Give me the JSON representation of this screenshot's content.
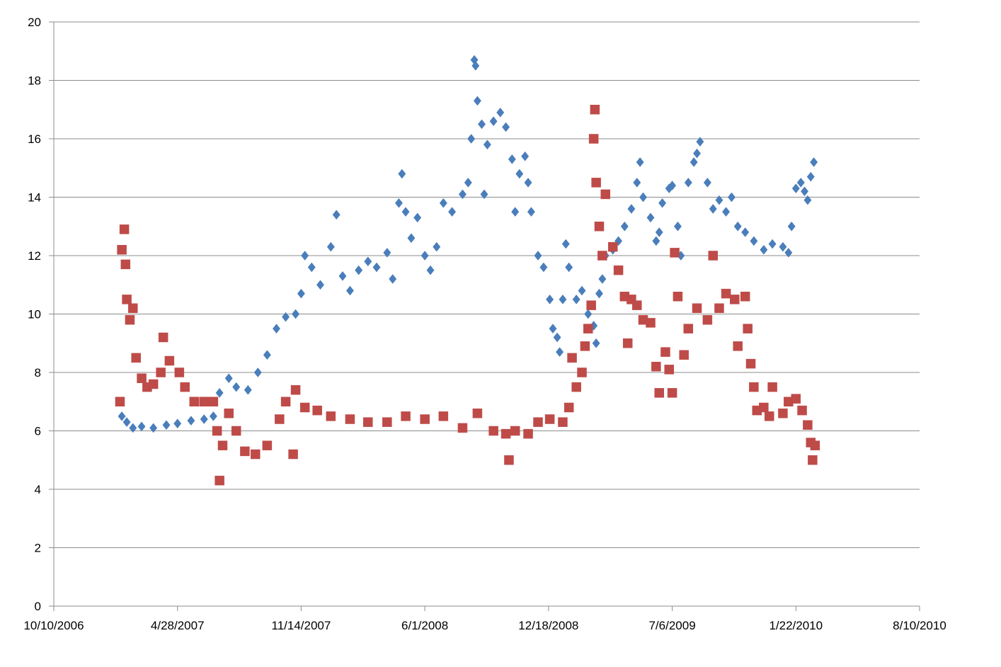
{
  "chart_data": {
    "type": "scatter",
    "title": "",
    "xlabel": "",
    "ylabel": "",
    "xlim": [
      "2006-10-10",
      "2010-08-10"
    ],
    "ylim": [
      0,
      20
    ],
    "grid": "horizontal",
    "legend": "none",
    "x_tick_labels": [
      "10/10/2006",
      "4/28/2007",
      "11/14/2007",
      "6/1/2008",
      "12/18/2008",
      "7/6/2009",
      "1/22/2010",
      "8/10/2010"
    ],
    "y_tick_labels": [
      "0",
      "2",
      "4",
      "6",
      "8",
      "10",
      "12",
      "14",
      "16",
      "18",
      "20"
    ],
    "series": [
      {
        "marker": "diamond",
        "color": "#4a7ebb",
        "points": [
          [
            "2007-01-28",
            6.5
          ],
          [
            "2007-02-05",
            6.3
          ],
          [
            "2007-02-15",
            6.1
          ],
          [
            "2007-03-01",
            6.15
          ],
          [
            "2007-03-20",
            6.1
          ],
          [
            "2007-04-10",
            6.2
          ],
          [
            "2007-04-28",
            6.25
          ],
          [
            "2007-05-20",
            6.35
          ],
          [
            "2007-06-10",
            6.4
          ],
          [
            "2007-06-25",
            6.5
          ],
          [
            "2007-07-05",
            7.3
          ],
          [
            "2007-07-20",
            7.8
          ],
          [
            "2007-08-01",
            7.5
          ],
          [
            "2007-08-20",
            7.4
          ],
          [
            "2007-09-05",
            8.0
          ],
          [
            "2007-09-20",
            8.6
          ],
          [
            "2007-10-05",
            9.5
          ],
          [
            "2007-10-20",
            9.9
          ],
          [
            "2007-11-05",
            10.0
          ],
          [
            "2007-11-14",
            10.7
          ],
          [
            "2007-11-20",
            12.0
          ],
          [
            "2007-12-01",
            11.6
          ],
          [
            "2007-12-15",
            11.0
          ],
          [
            "2008-01-01",
            12.3
          ],
          [
            "2008-01-10",
            13.4
          ],
          [
            "2008-01-20",
            11.3
          ],
          [
            "2008-02-01",
            10.8
          ],
          [
            "2008-02-15",
            11.5
          ],
          [
            "2008-03-01",
            11.8
          ],
          [
            "2008-03-15",
            11.6
          ],
          [
            "2008-04-01",
            12.1
          ],
          [
            "2008-04-10",
            11.2
          ],
          [
            "2008-04-20",
            13.8
          ],
          [
            "2008-04-25",
            14.8
          ],
          [
            "2008-05-01",
            13.5
          ],
          [
            "2008-05-10",
            12.6
          ],
          [
            "2008-05-20",
            13.3
          ],
          [
            "2008-06-01",
            12.0
          ],
          [
            "2008-06-10",
            11.5
          ],
          [
            "2008-06-20",
            12.3
          ],
          [
            "2008-07-01",
            13.8
          ],
          [
            "2008-07-15",
            13.5
          ],
          [
            "2008-08-01",
            14.1
          ],
          [
            "2008-08-10",
            14.5
          ],
          [
            "2008-08-15",
            16.0
          ],
          [
            "2008-08-20",
            18.7
          ],
          [
            "2008-08-22",
            18.5
          ],
          [
            "2008-08-25",
            17.3
          ],
          [
            "2008-09-01",
            16.5
          ],
          [
            "2008-09-05",
            14.1
          ],
          [
            "2008-09-10",
            15.8
          ],
          [
            "2008-09-20",
            16.6
          ],
          [
            "2008-10-01",
            16.9
          ],
          [
            "2008-10-10",
            16.4
          ],
          [
            "2008-10-20",
            15.3
          ],
          [
            "2008-10-25",
            13.5
          ],
          [
            "2008-11-01",
            14.8
          ],
          [
            "2008-11-10",
            15.4
          ],
          [
            "2008-11-15",
            14.5
          ],
          [
            "2008-11-20",
            13.5
          ],
          [
            "2008-12-01",
            12.0
          ],
          [
            "2008-12-10",
            11.6
          ],
          [
            "2008-12-20",
            10.5
          ],
          [
            "2008-12-25",
            9.5
          ],
          [
            "2009-01-01",
            9.2
          ],
          [
            "2009-01-05",
            8.7
          ],
          [
            "2009-01-10",
            10.5
          ],
          [
            "2009-01-15",
            12.4
          ],
          [
            "2009-01-20",
            11.6
          ],
          [
            "2009-02-01",
            10.5
          ],
          [
            "2009-02-10",
            10.8
          ],
          [
            "2009-02-20",
            10.0
          ],
          [
            "2009-03-01",
            9.6
          ],
          [
            "2009-03-05",
            9.0
          ],
          [
            "2009-03-10",
            10.7
          ],
          [
            "2009-03-15",
            11.2
          ],
          [
            "2009-03-20",
            12.0
          ],
          [
            "2009-04-01",
            12.2
          ],
          [
            "2009-04-10",
            12.5
          ],
          [
            "2009-04-20",
            13.0
          ],
          [
            "2009-05-01",
            13.6
          ],
          [
            "2009-05-10",
            14.5
          ],
          [
            "2009-05-15",
            15.2
          ],
          [
            "2009-05-20",
            14.0
          ],
          [
            "2009-06-01",
            13.3
          ],
          [
            "2009-06-10",
            12.5
          ],
          [
            "2009-06-15",
            12.8
          ],
          [
            "2009-06-20",
            13.8
          ],
          [
            "2009-07-01",
            14.3
          ],
          [
            "2009-07-06",
            14.4
          ],
          [
            "2009-07-15",
            13.0
          ],
          [
            "2009-07-20",
            12.0
          ],
          [
            "2009-08-01",
            14.5
          ],
          [
            "2009-08-10",
            15.2
          ],
          [
            "2009-08-15",
            15.5
          ],
          [
            "2009-08-20",
            15.9
          ],
          [
            "2009-09-01",
            14.5
          ],
          [
            "2009-09-10",
            13.6
          ],
          [
            "2009-09-20",
            13.9
          ],
          [
            "2009-10-01",
            13.5
          ],
          [
            "2009-10-10",
            14.0
          ],
          [
            "2009-10-20",
            13.0
          ],
          [
            "2009-11-01",
            12.8
          ],
          [
            "2009-11-15",
            12.5
          ],
          [
            "2009-12-01",
            12.2
          ],
          [
            "2009-12-15",
            12.4
          ],
          [
            "2010-01-01",
            12.3
          ],
          [
            "2010-01-10",
            12.1
          ],
          [
            "2010-01-15",
            13.0
          ],
          [
            "2010-01-22",
            14.3
          ],
          [
            "2010-01-30",
            14.5
          ],
          [
            "2010-02-05",
            14.2
          ],
          [
            "2010-02-10",
            13.9
          ],
          [
            "2010-02-15",
            14.7
          ],
          [
            "2010-02-20",
            15.2
          ]
        ]
      },
      {
        "marker": "square",
        "color": "#be4b48",
        "points": [
          [
            "2007-01-25",
            7.0
          ],
          [
            "2007-01-28",
            12.2
          ],
          [
            "2007-02-01",
            12.9
          ],
          [
            "2007-02-03",
            11.7
          ],
          [
            "2007-02-05",
            10.5
          ],
          [
            "2007-02-10",
            9.8
          ],
          [
            "2007-02-15",
            10.2
          ],
          [
            "2007-02-20",
            8.5
          ],
          [
            "2007-03-01",
            7.8
          ],
          [
            "2007-03-10",
            7.5
          ],
          [
            "2007-03-20",
            7.6
          ],
          [
            "2007-04-01",
            8.0
          ],
          [
            "2007-04-05",
            9.2
          ],
          [
            "2007-04-15",
            8.4
          ],
          [
            "2007-05-01",
            8.0
          ],
          [
            "2007-05-10",
            7.5
          ],
          [
            "2007-05-25",
            7.0
          ],
          [
            "2007-06-10",
            7.0
          ],
          [
            "2007-06-25",
            7.0
          ],
          [
            "2007-07-01",
            6.0
          ],
          [
            "2007-07-05",
            4.3
          ],
          [
            "2007-07-10",
            5.5
          ],
          [
            "2007-07-20",
            6.6
          ],
          [
            "2007-08-01",
            6.0
          ],
          [
            "2007-08-15",
            5.3
          ],
          [
            "2007-09-01",
            5.2
          ],
          [
            "2007-09-20",
            5.5
          ],
          [
            "2007-10-10",
            6.4
          ],
          [
            "2007-10-20",
            7.0
          ],
          [
            "2007-11-01",
            5.2
          ],
          [
            "2007-11-05",
            7.4
          ],
          [
            "2007-11-20",
            6.8
          ],
          [
            "2007-12-10",
            6.7
          ],
          [
            "2008-01-01",
            6.5
          ],
          [
            "2008-02-01",
            6.4
          ],
          [
            "2008-03-01",
            6.3
          ],
          [
            "2008-04-01",
            6.3
          ],
          [
            "2008-05-01",
            6.5
          ],
          [
            "2008-06-01",
            6.4
          ],
          [
            "2008-07-01",
            6.5
          ],
          [
            "2008-08-01",
            6.1
          ],
          [
            "2008-08-25",
            6.6
          ],
          [
            "2008-09-20",
            6.0
          ],
          [
            "2008-10-10",
            5.9
          ],
          [
            "2008-10-15",
            5.0
          ],
          [
            "2008-10-25",
            6.0
          ],
          [
            "2008-11-15",
            5.9
          ],
          [
            "2008-12-01",
            6.3
          ],
          [
            "2008-12-20",
            6.4
          ],
          [
            "2009-01-10",
            6.3
          ],
          [
            "2009-01-20",
            6.8
          ],
          [
            "2009-01-25",
            8.5
          ],
          [
            "2009-02-01",
            7.5
          ],
          [
            "2009-02-10",
            8.0
          ],
          [
            "2009-02-15",
            8.9
          ],
          [
            "2009-02-20",
            9.5
          ],
          [
            "2009-02-25",
            10.3
          ],
          [
            "2009-03-01",
            16.0
          ],
          [
            "2009-03-03",
            17.0
          ],
          [
            "2009-03-05",
            14.5
          ],
          [
            "2009-03-10",
            13.0
          ],
          [
            "2009-03-15",
            12.0
          ],
          [
            "2009-03-20",
            14.1
          ],
          [
            "2009-04-01",
            12.3
          ],
          [
            "2009-04-10",
            11.5
          ],
          [
            "2009-04-20",
            10.6
          ],
          [
            "2009-04-25",
            9.0
          ],
          [
            "2009-05-01",
            10.5
          ],
          [
            "2009-05-10",
            10.3
          ],
          [
            "2009-05-20",
            9.8
          ],
          [
            "2009-06-01",
            9.7
          ],
          [
            "2009-06-10",
            8.2
          ],
          [
            "2009-06-15",
            7.3
          ],
          [
            "2009-06-25",
            8.7
          ],
          [
            "2009-07-01",
            8.1
          ],
          [
            "2009-07-06",
            7.3
          ],
          [
            "2009-07-10",
            12.1
          ],
          [
            "2009-07-15",
            10.6
          ],
          [
            "2009-07-25",
            8.6
          ],
          [
            "2009-08-01",
            9.5
          ],
          [
            "2009-08-15",
            10.2
          ],
          [
            "2009-09-01",
            9.8
          ],
          [
            "2009-09-10",
            12.0
          ],
          [
            "2009-09-20",
            10.2
          ],
          [
            "2009-10-01",
            10.7
          ],
          [
            "2009-10-15",
            10.5
          ],
          [
            "2009-10-20",
            8.9
          ],
          [
            "2009-11-01",
            10.6
          ],
          [
            "2009-11-05",
            9.5
          ],
          [
            "2009-11-10",
            8.3
          ],
          [
            "2009-11-15",
            7.5
          ],
          [
            "2009-11-20",
            6.7
          ],
          [
            "2009-12-01",
            6.8
          ],
          [
            "2009-12-10",
            6.5
          ],
          [
            "2009-12-15",
            7.5
          ],
          [
            "2010-01-01",
            6.6
          ],
          [
            "2010-01-10",
            7.0
          ],
          [
            "2010-01-22",
            7.1
          ],
          [
            "2010-02-01",
            6.7
          ],
          [
            "2010-02-10",
            6.2
          ],
          [
            "2010-02-15",
            5.6
          ],
          [
            "2010-02-18",
            5.0
          ],
          [
            "2010-02-22",
            5.5
          ]
        ]
      }
    ]
  }
}
